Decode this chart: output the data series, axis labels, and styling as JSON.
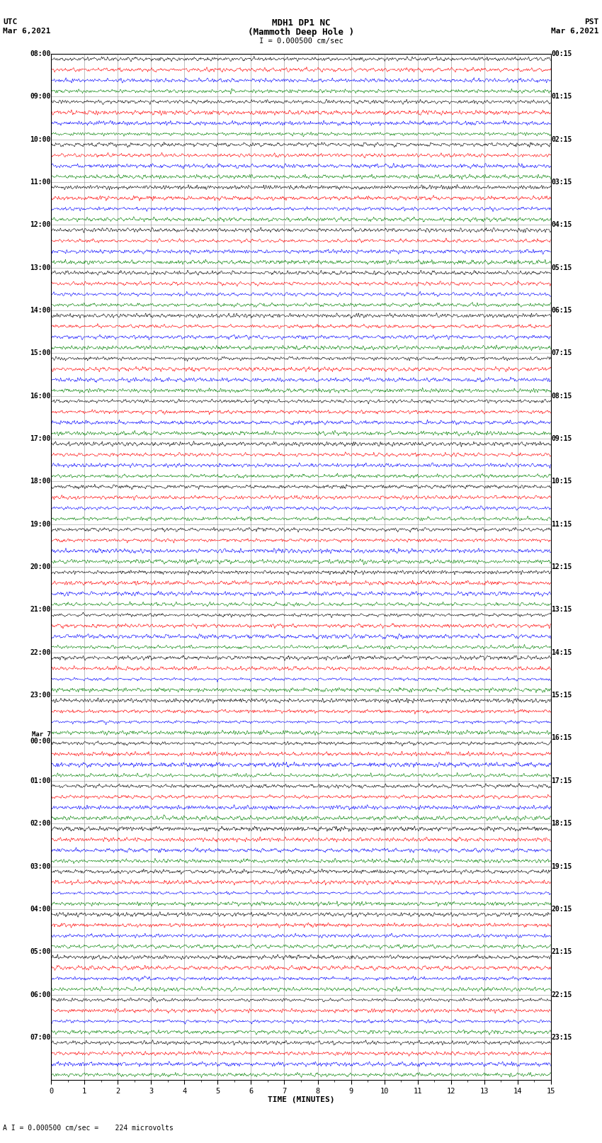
{
  "title_line1": "MDH1 DP1 NC",
  "title_line2": "(Mammoth Deep Hole )",
  "scale_label": "I = 0.000500 cm/sec",
  "left_header1": "UTC",
  "left_header2": "Mar 6,2021",
  "right_header1": "PST",
  "right_header2": "Mar 6,2021",
  "footer_label": "A I = 0.000500 cm/sec =    224 microvolts",
  "xlabel": "TIME (MINUTES)",
  "xlim": [
    0,
    15
  ],
  "colors": [
    "black",
    "red",
    "blue",
    "green"
  ],
  "background_color": "white",
  "rows": [
    {
      "utc": "08:00",
      "pst": "00:15"
    },
    {
      "utc": "",
      "pst": ""
    },
    {
      "utc": "",
      "pst": ""
    },
    {
      "utc": "",
      "pst": ""
    },
    {
      "utc": "09:00",
      "pst": "01:15"
    },
    {
      "utc": "",
      "pst": ""
    },
    {
      "utc": "",
      "pst": ""
    },
    {
      "utc": "",
      "pst": ""
    },
    {
      "utc": "10:00",
      "pst": "02:15"
    },
    {
      "utc": "",
      "pst": ""
    },
    {
      "utc": "",
      "pst": ""
    },
    {
      "utc": "",
      "pst": ""
    },
    {
      "utc": "11:00",
      "pst": "03:15"
    },
    {
      "utc": "",
      "pst": ""
    },
    {
      "utc": "",
      "pst": ""
    },
    {
      "utc": "",
      "pst": ""
    },
    {
      "utc": "12:00",
      "pst": "04:15"
    },
    {
      "utc": "",
      "pst": ""
    },
    {
      "utc": "",
      "pst": ""
    },
    {
      "utc": "",
      "pst": ""
    },
    {
      "utc": "13:00",
      "pst": "05:15"
    },
    {
      "utc": "",
      "pst": ""
    },
    {
      "utc": "",
      "pst": ""
    },
    {
      "utc": "",
      "pst": ""
    },
    {
      "utc": "14:00",
      "pst": "06:15"
    },
    {
      "utc": "",
      "pst": ""
    },
    {
      "utc": "",
      "pst": ""
    },
    {
      "utc": "",
      "pst": ""
    },
    {
      "utc": "15:00",
      "pst": "07:15"
    },
    {
      "utc": "",
      "pst": ""
    },
    {
      "utc": "",
      "pst": ""
    },
    {
      "utc": "",
      "pst": ""
    },
    {
      "utc": "16:00",
      "pst": "08:15"
    },
    {
      "utc": "",
      "pst": ""
    },
    {
      "utc": "",
      "pst": ""
    },
    {
      "utc": "",
      "pst": ""
    },
    {
      "utc": "17:00",
      "pst": "09:15"
    },
    {
      "utc": "",
      "pst": ""
    },
    {
      "utc": "",
      "pst": ""
    },
    {
      "utc": "",
      "pst": ""
    },
    {
      "utc": "18:00",
      "pst": "10:15"
    },
    {
      "utc": "",
      "pst": ""
    },
    {
      "utc": "",
      "pst": ""
    },
    {
      "utc": "",
      "pst": ""
    },
    {
      "utc": "19:00",
      "pst": "11:15"
    },
    {
      "utc": "",
      "pst": ""
    },
    {
      "utc": "",
      "pst": ""
    },
    {
      "utc": "",
      "pst": ""
    },
    {
      "utc": "20:00",
      "pst": "12:15"
    },
    {
      "utc": "",
      "pst": ""
    },
    {
      "utc": "",
      "pst": ""
    },
    {
      "utc": "",
      "pst": ""
    },
    {
      "utc": "21:00",
      "pst": "13:15"
    },
    {
      "utc": "",
      "pst": ""
    },
    {
      "utc": "",
      "pst": ""
    },
    {
      "utc": "",
      "pst": ""
    },
    {
      "utc": "22:00",
      "pst": "14:15"
    },
    {
      "utc": "",
      "pst": ""
    },
    {
      "utc": "",
      "pst": ""
    },
    {
      "utc": "",
      "pst": ""
    },
    {
      "utc": "23:00",
      "pst": "15:15"
    },
    {
      "utc": "",
      "pst": ""
    },
    {
      "utc": "",
      "pst": ""
    },
    {
      "utc": "",
      "pst": ""
    },
    {
      "utc": "Mar 7\n00:00",
      "pst": "16:15"
    },
    {
      "utc": "",
      "pst": ""
    },
    {
      "utc": "",
      "pst": ""
    },
    {
      "utc": "",
      "pst": ""
    },
    {
      "utc": "01:00",
      "pst": "17:15"
    },
    {
      "utc": "",
      "pst": ""
    },
    {
      "utc": "",
      "pst": ""
    },
    {
      "utc": "",
      "pst": ""
    },
    {
      "utc": "02:00",
      "pst": "18:15"
    },
    {
      "utc": "",
      "pst": ""
    },
    {
      "utc": "",
      "pst": ""
    },
    {
      "utc": "",
      "pst": ""
    },
    {
      "utc": "03:00",
      "pst": "19:15"
    },
    {
      "utc": "",
      "pst": ""
    },
    {
      "utc": "",
      "pst": ""
    },
    {
      "utc": "",
      "pst": ""
    },
    {
      "utc": "04:00",
      "pst": "20:15"
    },
    {
      "utc": "",
      "pst": ""
    },
    {
      "utc": "",
      "pst": ""
    },
    {
      "utc": "",
      "pst": ""
    },
    {
      "utc": "05:00",
      "pst": "21:15"
    },
    {
      "utc": "",
      "pst": ""
    },
    {
      "utc": "",
      "pst": ""
    },
    {
      "utc": "",
      "pst": ""
    },
    {
      "utc": "06:00",
      "pst": "22:15"
    },
    {
      "utc": "",
      "pst": ""
    },
    {
      "utc": "",
      "pst": ""
    },
    {
      "utc": "",
      "pst": ""
    },
    {
      "utc": "07:00",
      "pst": "23:15"
    },
    {
      "utc": "",
      "pst": ""
    },
    {
      "utc": "",
      "pst": ""
    },
    {
      "utc": "",
      "pst": ""
    }
  ]
}
